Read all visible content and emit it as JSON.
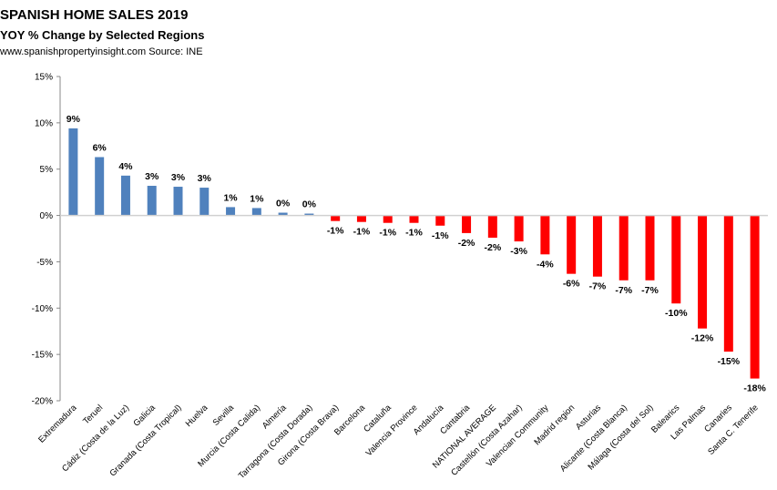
{
  "chart_data": {
    "type": "bar",
    "title": "SPANISH HOME SALES 2019",
    "subtitle": "YOY % Change by Selected Regions",
    "source": "www.spanishpropertyinsight.com Source: INE",
    "xlabel": "",
    "ylabel": "",
    "ylim": [
      -20,
      15
    ],
    "yticks": [
      "15%",
      "10%",
      "5%",
      "0%",
      "-5%",
      "-10%",
      "-15%",
      "-20%"
    ],
    "ytick_values": [
      15,
      10,
      5,
      0,
      -5,
      -10,
      -15,
      -20
    ],
    "grid": false,
    "positive_color": "#4f81bd",
    "negative_color": "#ff0000",
    "categories": [
      "Extremadura",
      "Teruel",
      "Cádiz (Costa de la Luz)",
      "Galicia",
      "Granada (Costa Tropical)",
      "Huelva",
      "Sevilla",
      "Murcia (Costa Calida)",
      "Almería",
      "Tarragona (Costa Dorada)",
      "Girona (Costa Brava)",
      "Barcelona",
      "Cataluña",
      "Valencia Province",
      "Andalucía",
      "Cantabria",
      "NATIONAL AVERAGE",
      "Castellón (Costa Azahar)",
      "Valencian Community",
      "Madrid region",
      "Asturias",
      "Alicante (Costa Blanca)",
      "Málaga (Costa del Sol)",
      "Balearics",
      "Las Palmas",
      "Canaries",
      "Santa C. Tenerife"
    ],
    "values": [
      9.4,
      6.3,
      4.3,
      3.2,
      3.1,
      3.0,
      0.9,
      0.8,
      0.3,
      0.2,
      -0.6,
      -0.7,
      -0.8,
      -0.8,
      -1.1,
      -1.9,
      -2.4,
      -2.8,
      -4.2,
      -6.3,
      -6.6,
      -7.0,
      -7.0,
      -9.5,
      -12.2,
      -14.7,
      -17.6
    ],
    "data_labels": [
      "9%",
      "6%",
      "4%",
      "3%",
      "3%",
      "3%",
      "1%",
      "1%",
      "0%",
      "0%",
      "-1%",
      "-1%",
      "-1%",
      "-1%",
      "-1%",
      "-2%",
      "-2%",
      "-3%",
      "-4%",
      "-6%",
      "-7%",
      "-7%",
      "-7%",
      "-10%",
      "-12%",
      "-15%",
      "-18%"
    ]
  }
}
